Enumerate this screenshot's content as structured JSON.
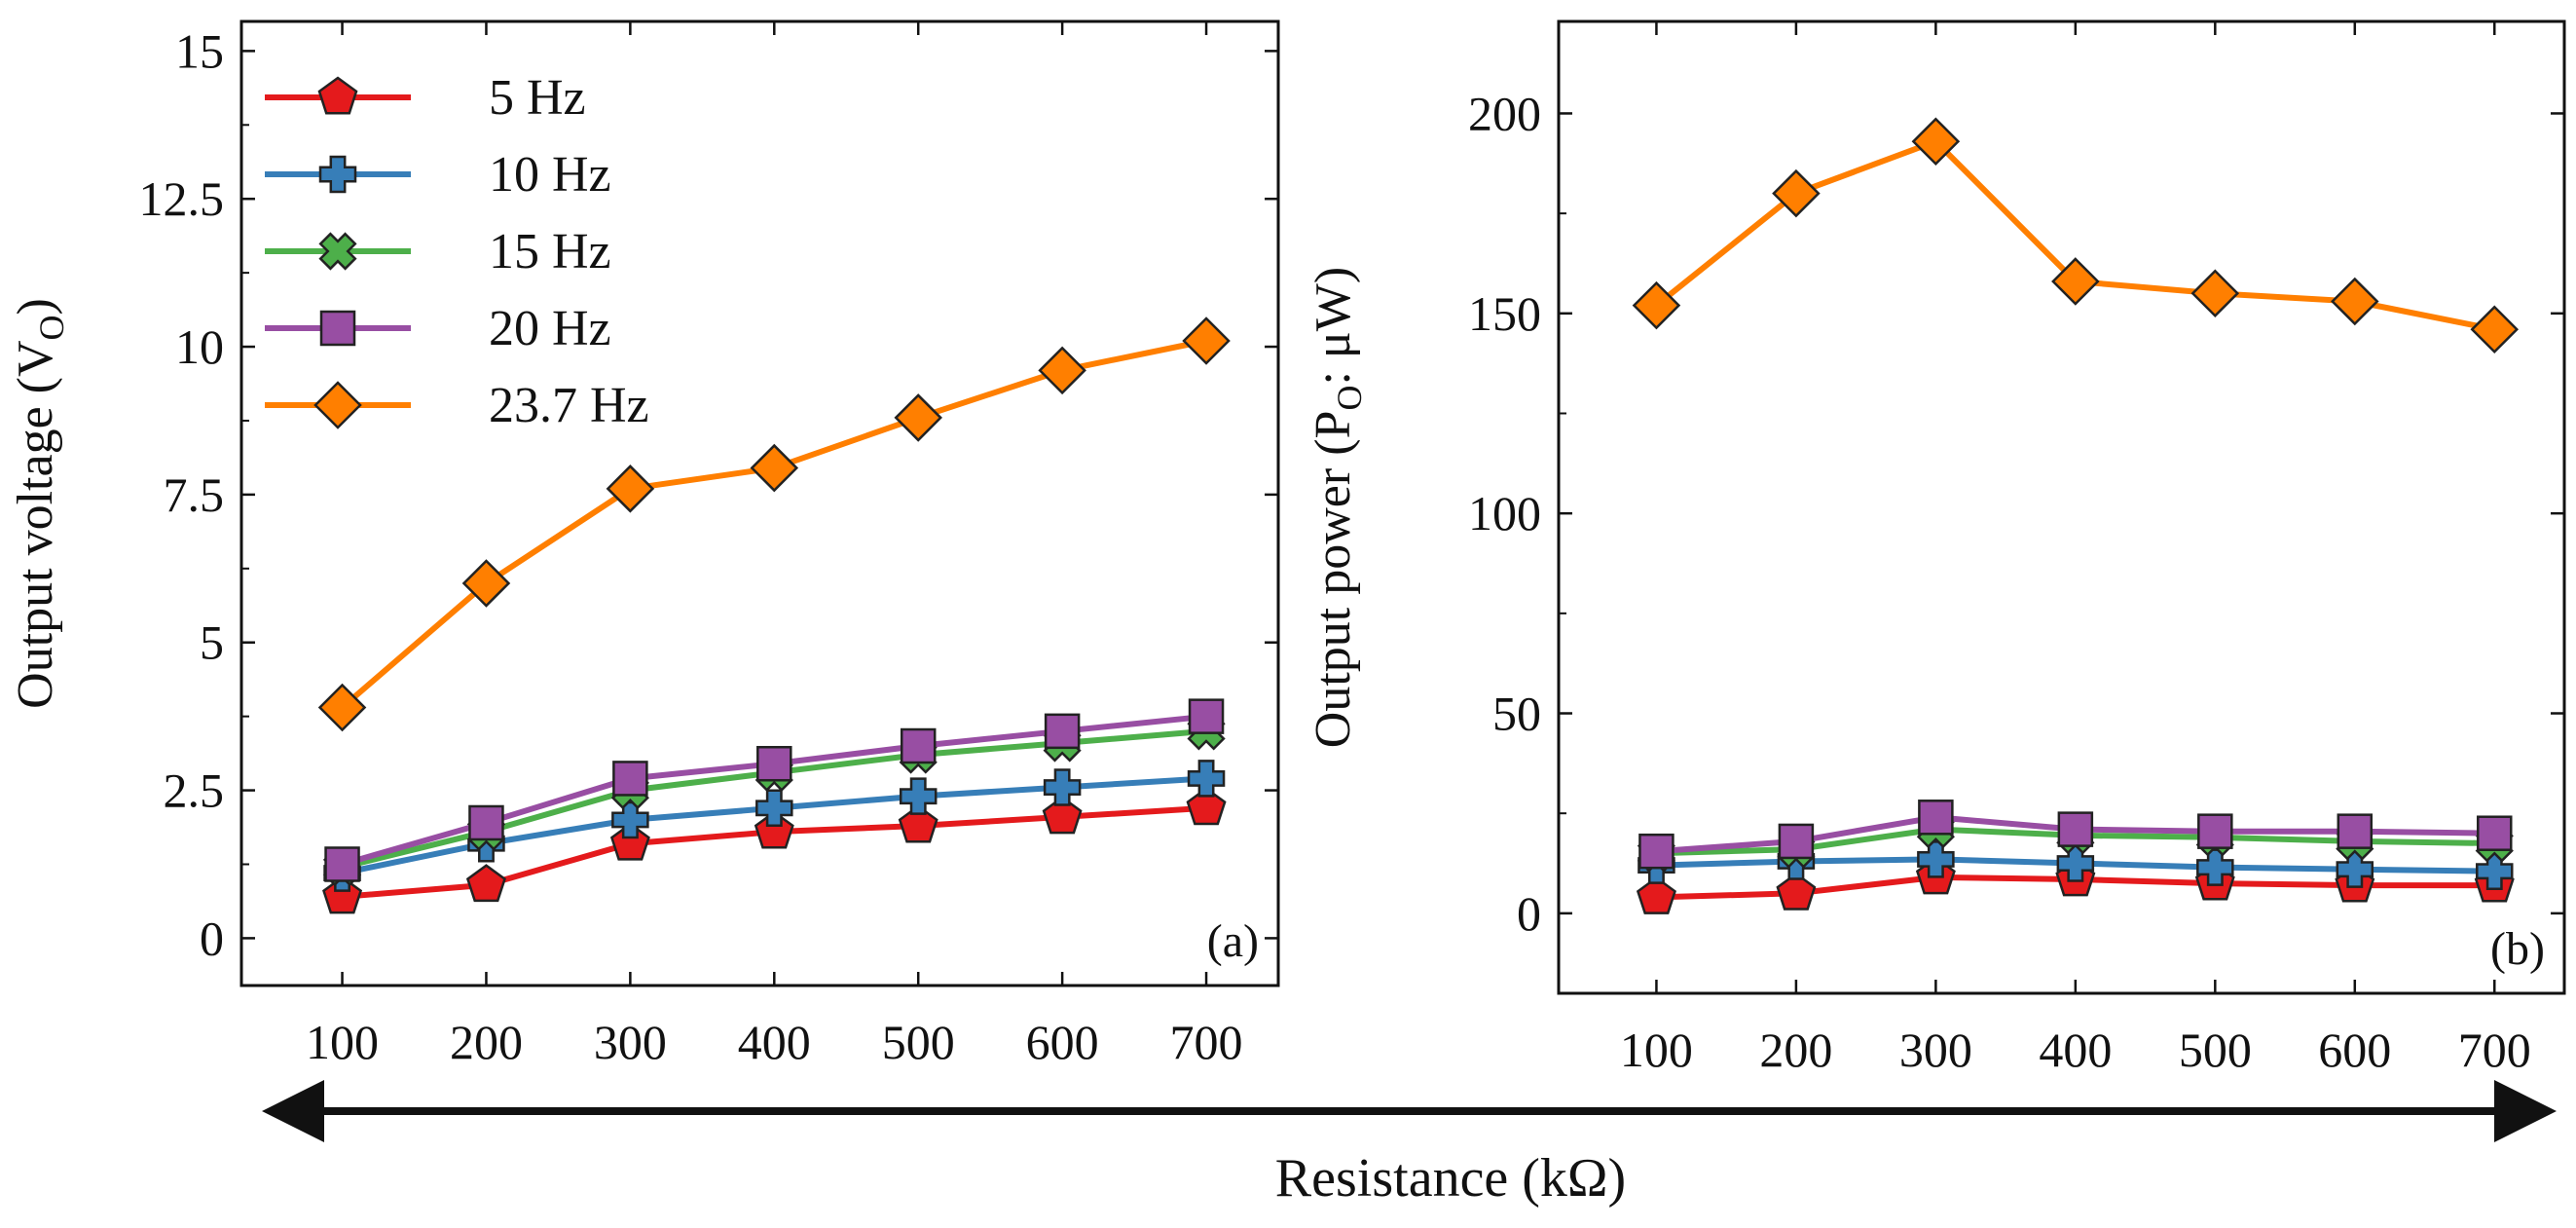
{
  "figure": {
    "xlabel": "Resistance (kΩ)"
  },
  "colors": {
    "5 Hz": "#e41a1c",
    "10 Hz": "#377eb8",
    "15 Hz": "#4daf4a",
    "20 Hz": "#984ea3",
    "23.7 Hz": "#ff7f00"
  },
  "chart_data": [
    {
      "type": "line",
      "panel_label": "(a)",
      "ylabel_main": "Output voltage (V",
      "ylabel_sub": "O",
      "ylabel_end": ")",
      "x": [
        100,
        200,
        300,
        400,
        500,
        600,
        700
      ],
      "x_tick_labels": [
        "100",
        "200",
        "300",
        "400",
        "500",
        "600",
        "700"
      ],
      "xlim": [
        30,
        750
      ],
      "ylim": [
        -0.8,
        15.5
      ],
      "y_ticks": [
        0,
        2.5,
        5,
        7.5,
        10,
        12.5,
        15
      ],
      "y_tick_labels": [
        "0",
        "2.5",
        "5",
        "7.5",
        "10",
        "12.5",
        "15"
      ],
      "legend_position": "top-left",
      "series": [
        {
          "name": "5 Hz",
          "marker": "pentagon",
          "values": [
            0.7,
            0.9,
            1.6,
            1.8,
            1.9,
            2.05,
            2.2
          ]
        },
        {
          "name": "10 Hz",
          "marker": "plus",
          "values": [
            1.1,
            1.6,
            2.0,
            2.2,
            2.4,
            2.55,
            2.7
          ]
        },
        {
          "name": "15 Hz",
          "marker": "x",
          "values": [
            1.2,
            1.8,
            2.5,
            2.8,
            3.1,
            3.3,
            3.5
          ]
        },
        {
          "name": "20 Hz",
          "marker": "square",
          "values": [
            1.25,
            1.95,
            2.7,
            2.95,
            3.25,
            3.5,
            3.75
          ]
        },
        {
          "name": "23.7 Hz",
          "marker": "diamond",
          "values": [
            3.9,
            6.0,
            7.6,
            7.95,
            8.8,
            9.6,
            10.1
          ]
        }
      ]
    },
    {
      "type": "line",
      "panel_label": "(b)",
      "ylabel_main": "Output power (P",
      "ylabel_sub": "O",
      "ylabel_end": ": μW)",
      "x": [
        100,
        200,
        300,
        400,
        500,
        600,
        700
      ],
      "x_tick_labels": [
        "100",
        "200",
        "300",
        "400",
        "500",
        "600",
        "700"
      ],
      "xlim": [
        30,
        750
      ],
      "ylim": [
        -20,
        223
      ],
      "y_ticks": [
        0,
        50,
        100,
        150,
        200
      ],
      "y_tick_labels": [
        "0",
        "50",
        "100",
        "150",
        "200"
      ],
      "series": [
        {
          "name": "5 Hz",
          "marker": "pentagon",
          "values": [
            4,
            5,
            9,
            8.5,
            7.5,
            7,
            7
          ]
        },
        {
          "name": "10 Hz",
          "marker": "plus",
          "values": [
            12,
            13,
            13.5,
            12.5,
            11.5,
            11,
            10.5
          ]
        },
        {
          "name": "15 Hz",
          "marker": "x",
          "values": [
            15,
            16,
            21,
            19.5,
            19,
            18,
            17.5
          ]
        },
        {
          "name": "20 Hz",
          "marker": "square",
          "values": [
            15.5,
            18,
            24,
            21,
            20.5,
            20.5,
            20
          ]
        },
        {
          "name": "23.7 Hz",
          "marker": "diamond",
          "values": [
            152,
            180,
            193,
            158,
            155,
            153,
            146
          ]
        }
      ]
    }
  ]
}
